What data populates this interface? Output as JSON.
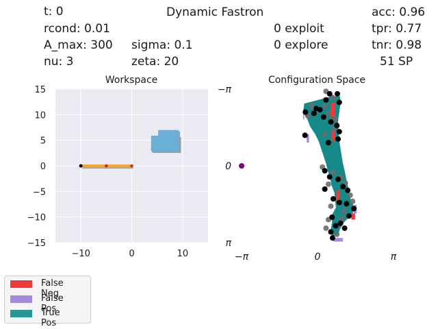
{
  "header": {
    "title": "Dynamic Fastron",
    "t": "t: 0",
    "rcond": "rcond: 0.01",
    "a_max": "A_max: 300",
    "nu": "nu: 3",
    "sigma": "sigma: 0.1",
    "zeta": "zeta: 20",
    "exploit": "0 exploit",
    "explore": "0 explore",
    "acc": "acc: 0.96",
    "tpr": "tpr: 0.77",
    "tnr": "tnr: 0.98",
    "sp": "51 SP"
  },
  "colors": {
    "axes_bg": "#eaeaf2",
    "grid": "#ffffff",
    "arm": "#f5a623",
    "arm_shadow": "#a6a6a6",
    "obstacle": "#6baed6",
    "obstacle_shadow": "#9a9a9a",
    "false_neg": "#f03a3a",
    "false_pos": "#a58bdf",
    "true_pos": "#168a8a",
    "point": "#000000",
    "point_gray": "#6b6b6b",
    "marker": "#800080"
  },
  "legend": {
    "items": [
      {
        "label": "False Neg",
        "color": "#f03a3a"
      },
      {
        "label": "False Pos",
        "color": "#a58bdf"
      },
      {
        "label": "True Pos",
        "color": "#2a9595"
      }
    ]
  },
  "chart_data": [
    {
      "type": "scatter",
      "title": "Workspace",
      "xlim": [
        -15,
        15
      ],
      "ylim": [
        -15,
        15
      ],
      "xticks": [
        "−10",
        "0",
        "10"
      ],
      "xtick_values": [
        -10,
        0,
        10
      ],
      "yticks": [
        "15",
        "10",
        "5",
        "0",
        "−5",
        "−10",
        "−15"
      ],
      "ytick_values": [
        15,
        10,
        5,
        0,
        -5,
        -10,
        -15
      ],
      "grid": true,
      "arm": {
        "points": [
          [
            -10,
            0
          ],
          [
            -5,
            0
          ],
          [
            0,
            0
          ]
        ],
        "base": [
          -10,
          0
        ],
        "joints": [
          [
            -5,
            0
          ],
          [
            0,
            0
          ]
        ]
      },
      "obstacles": [
        {
          "x": [
            3.8,
            9.4
          ],
          "y": [
            2.8,
            5.9
          ]
        },
        {
          "x": [
            5.2,
            9.2
          ],
          "y": [
            5.8,
            7.0
          ]
        }
      ]
    },
    {
      "type": "heatmap",
      "title": "Configuration Space",
      "xlim": [
        "−π",
        "π"
      ],
      "ylim": [
        "π",
        "−π"
      ],
      "xticks": [
        "−π",
        "0",
        "π"
      ],
      "yticks": [
        "−π",
        "0",
        "π"
      ],
      "grid": false,
      "marker": {
        "q1": -3.14,
        "q2": 0
      },
      "true_pos_band": {
        "q2": [
          -2.85,
          -2.55,
          -2.2,
          -1.9,
          -1.6,
          -1.3,
          -1.0,
          -0.7,
          -0.4,
          -0.1,
          0.2,
          0.5,
          0.8,
          1.1,
          1.4,
          1.7,
          2.0,
          2.3,
          2.6,
          2.85
        ],
        "q1_left": [
          0.6,
          -0.55,
          -0.6,
          -0.42,
          -0.3,
          -0.1,
          0.05,
          0.15,
          0.25,
          0.35,
          0.42,
          0.52,
          0.58,
          0.7,
          0.72,
          0.76,
          0.6,
          0.6,
          0.55,
          0.58
        ],
        "q1_right": [
          0.93,
          0.95,
          0.9,
          0.85,
          0.85,
          0.88,
          0.9,
          0.95,
          1.0,
          1.05,
          1.12,
          1.18,
          1.25,
          1.3,
          1.38,
          1.5,
          1.42,
          1.1,
          0.92,
          0.85
        ]
      },
      "false_pos_patches": [
        {
          "q1": [
            -0.6,
            -0.55
          ],
          "q2": [
            -2.3,
            -1.9
          ]
        },
        {
          "q1": [
            -0.45,
            -0.35
          ],
          "q2": [
            -1.3,
            -0.95
          ]
        },
        {
          "q1": [
            1.35,
            1.48
          ],
          "q2": [
            1.5,
            2.0
          ]
        },
        {
          "q1": [
            1.5,
            1.62
          ],
          "q2": [
            1.6,
            1.95
          ]
        },
        {
          "q1": [
            0.65,
            1.05
          ],
          "q2": [
            2.95,
            3.1
          ]
        }
      ],
      "false_neg_patches": [
        {
          "q1": [
            0.55,
            0.72
          ],
          "q2": [
            -2.6,
            -2.0
          ]
        },
        {
          "q1": [
            0.58,
            0.72
          ],
          "q2": [
            -1.45,
            -1.05
          ]
        },
        {
          "q1": [
            1.4,
            1.55
          ],
          "q2": [
            1.95,
            2.2
          ]
        },
        {
          "q1": [
            0.78,
            0.92
          ],
          "q2": [
            1.0,
            1.5
          ]
        }
      ],
      "support_points_black": [
        [
          0.5,
          -2.95
        ],
        [
          0.82,
          -2.95
        ],
        [
          0.35,
          -2.7
        ],
        [
          0.9,
          -2.6
        ],
        [
          -0.05,
          -2.35
        ],
        [
          0.1,
          -2.3
        ],
        [
          -0.5,
          -2.2
        ],
        [
          -0.15,
          -2.15
        ],
        [
          0.25,
          -2.0
        ],
        [
          0.55,
          -1.8
        ],
        [
          0.8,
          -1.65
        ],
        [
          0.9,
          -1.4
        ],
        [
          -0.52,
          -1.25
        ],
        [
          0.85,
          -1.1
        ],
        [
          0.45,
          -0.95
        ],
        [
          0.3,
          0.2
        ],
        [
          0.5,
          0.45
        ],
        [
          0.85,
          0.55
        ],
        [
          1.05,
          0.85
        ],
        [
          0.3,
          0.95
        ],
        [
          1.25,
          1.0
        ],
        [
          0.65,
          1.35
        ],
        [
          0.9,
          1.5
        ],
        [
          1.2,
          1.55
        ],
        [
          1.5,
          1.75
        ],
        [
          0.6,
          2.1
        ],
        [
          1.3,
          2.05
        ],
        [
          0.75,
          2.45
        ],
        [
          0.55,
          2.7
        ],
        [
          0.62,
          2.95
        ],
        [
          1.12,
          2.55
        ],
        [
          0.95,
          2.35
        ]
      ],
      "support_points_gray": [
        [
          0.35,
          -3.05
        ],
        [
          0.62,
          -2.8
        ],
        [
          -0.25,
          -2.45
        ],
        [
          0.3,
          -2.45
        ],
        [
          0.45,
          -2.15
        ],
        [
          -0.4,
          -2.05
        ],
        [
          0.75,
          -1.9
        ],
        [
          0.65,
          -1.5
        ],
        [
          0.3,
          -1.3
        ],
        [
          0.2,
          0.05
        ],
        [
          0.65,
          0.25
        ],
        [
          0.95,
          0.45
        ],
        [
          0.45,
          0.75
        ],
        [
          1.15,
          0.7
        ],
        [
          1.35,
          1.2
        ],
        [
          1.45,
          1.45
        ],
        [
          0.55,
          1.65
        ],
        [
          1.1,
          1.85
        ],
        [
          0.45,
          2.2
        ],
        [
          1.0,
          2.15
        ],
        [
          0.35,
          2.55
        ],
        [
          0.8,
          2.8
        ]
      ]
    }
  ]
}
